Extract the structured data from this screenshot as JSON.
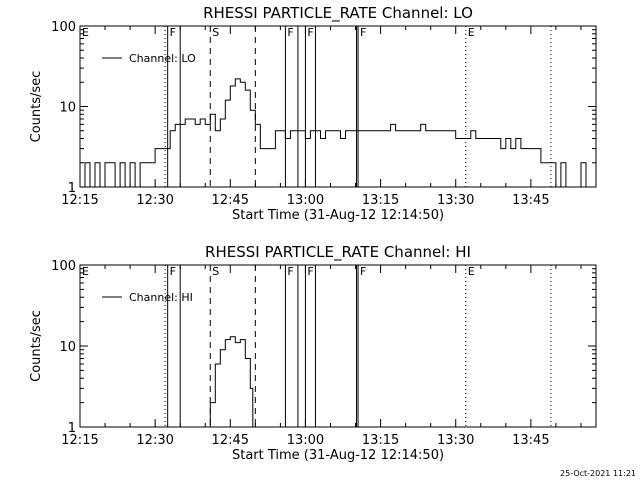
{
  "chart_data": [
    {
      "type": "line",
      "title": "RHESSI PARTICLE_RATE Channel: LO",
      "xlabel": "Start Time (31-Aug-12 12:14:50)",
      "ylabel": "Counts/sec",
      "y_scale": "log",
      "ylim": [
        1,
        100
      ],
      "x_unit": "minutes after 12:15",
      "xlim": [
        0,
        103
      ],
      "x_ticks": [
        "12:15",
        "12:30",
        "12:45",
        "13:00",
        "13:15",
        "13:30",
        "13:45"
      ],
      "y_ticks": [
        "1",
        "10",
        "100"
      ],
      "legend": "top-left",
      "series": [
        {
          "name": "Channel: LO",
          "x": [
            0,
            1,
            2,
            3,
            4,
            5,
            6,
            7,
            8,
            9,
            10,
            11,
            12,
            13,
            14,
            15,
            16,
            17,
            18,
            19,
            20,
            21,
            22,
            23,
            24,
            25,
            26,
            27,
            28,
            29,
            30,
            31,
            32,
            33,
            34,
            35,
            36,
            37,
            38,
            39,
            40,
            41,
            42,
            43,
            44,
            45,
            46,
            47,
            48,
            49,
            50,
            51,
            52,
            53,
            54,
            55,
            56,
            57,
            58,
            59,
            60,
            61,
            62,
            63,
            64,
            65,
            66,
            67,
            68,
            69,
            70,
            71,
            72,
            73,
            74,
            75,
            76,
            77,
            78,
            79,
            80,
            81,
            82,
            83,
            84,
            85,
            86,
            87,
            88,
            89,
            90,
            91,
            92,
            93,
            94,
            95,
            96,
            97,
            98,
            99,
            100,
            101,
            102,
            103
          ],
          "y": [
            1,
            2,
            1,
            2,
            1,
            2,
            2,
            1,
            2,
            1,
            2,
            1,
            2,
            2,
            2,
            3,
            3,
            3,
            5,
            6,
            6,
            7,
            7,
            6,
            7,
            6,
            8,
            5,
            7,
            12,
            18,
            22,
            20,
            16,
            9,
            6,
            3,
            3,
            3,
            5,
            5,
            4,
            5,
            5,
            5,
            4,
            5,
            5,
            4,
            5,
            5,
            5,
            4,
            5,
            5,
            5,
            5,
            5,
            5,
            5,
            5,
            5,
            6,
            5,
            5,
            5,
            5,
            5,
            6,
            5,
            5,
            5,
            5,
            5,
            5,
            4,
            4,
            4,
            5,
            4,
            4,
            4,
            4,
            4,
            3,
            4,
            3,
            4,
            3,
            3,
            3,
            3,
            2,
            2,
            2,
            1,
            2,
            1,
            1,
            1,
            2,
            1,
            1,
            2
          ]
        }
      ],
      "markers": [
        {
          "label": "E",
          "x": 0,
          "style": "dotted"
        },
        {
          "label": "",
          "x": 17,
          "style": "dotted"
        },
        {
          "label": "F",
          "x": 17.5,
          "style": "solid"
        },
        {
          "label": "",
          "x": 20,
          "style": "solid"
        },
        {
          "label": "S",
          "x": 26,
          "style": "dashed"
        },
        {
          "label": "",
          "x": 35,
          "style": "dashed"
        },
        {
          "label": "F",
          "x": 41,
          "style": "solid"
        },
        {
          "label": "",
          "x": 43.5,
          "style": "solid"
        },
        {
          "label": "F",
          "x": 45,
          "style": "solid"
        },
        {
          "label": "",
          "x": 47,
          "style": "solid"
        },
        {
          "label": "F",
          "x": 55.5,
          "style": "solid"
        },
        {
          "label": "",
          "x": 55.2,
          "style": "solid"
        },
        {
          "label": "E",
          "x": 77,
          "style": "dotted"
        },
        {
          "label": "",
          "x": 94,
          "style": "dotted"
        }
      ]
    },
    {
      "type": "line",
      "title": "RHESSI PARTICLE_RATE Channel: HI",
      "xlabel": "Start Time (31-Aug-12 12:14:50)",
      "ylabel": "Counts/sec",
      "y_scale": "log",
      "ylim": [
        1,
        100
      ],
      "x_unit": "minutes after 12:15",
      "xlim": [
        0,
        103
      ],
      "x_ticks": [
        "12:15",
        "12:30",
        "12:45",
        "13:00",
        "13:15",
        "13:30",
        "13:45"
      ],
      "y_ticks": [
        "1",
        "10",
        "100"
      ],
      "legend": "top-left",
      "series": [
        {
          "name": "Channel: HI",
          "x": [
            25.5,
            26,
            27,
            28,
            29,
            30,
            31,
            32,
            33,
            34,
            34.5
          ],
          "y": [
            1,
            2,
            6,
            9,
            12,
            13,
            11,
            12,
            7,
            3,
            1
          ]
        }
      ],
      "markers": [
        {
          "label": "E",
          "x": 0,
          "style": "dotted"
        },
        {
          "label": "",
          "x": 17,
          "style": "dotted"
        },
        {
          "label": "F",
          "x": 17.5,
          "style": "solid"
        },
        {
          "label": "",
          "x": 20,
          "style": "solid"
        },
        {
          "label": "S",
          "x": 26,
          "style": "dashed"
        },
        {
          "label": "",
          "x": 35,
          "style": "dashed"
        },
        {
          "label": "F",
          "x": 41,
          "style": "solid"
        },
        {
          "label": "",
          "x": 43.5,
          "style": "solid"
        },
        {
          "label": "F",
          "x": 45,
          "style": "solid"
        },
        {
          "label": "",
          "x": 47,
          "style": "solid"
        },
        {
          "label": "F",
          "x": 55.5,
          "style": "solid"
        },
        {
          "label": "",
          "x": 55.2,
          "style": "solid"
        },
        {
          "label": "E",
          "x": 77,
          "style": "dotted"
        },
        {
          "label": "",
          "x": 94,
          "style": "dotted"
        }
      ]
    }
  ],
  "footer": {
    "timestamp": "25-Oct-2021 11:21"
  }
}
